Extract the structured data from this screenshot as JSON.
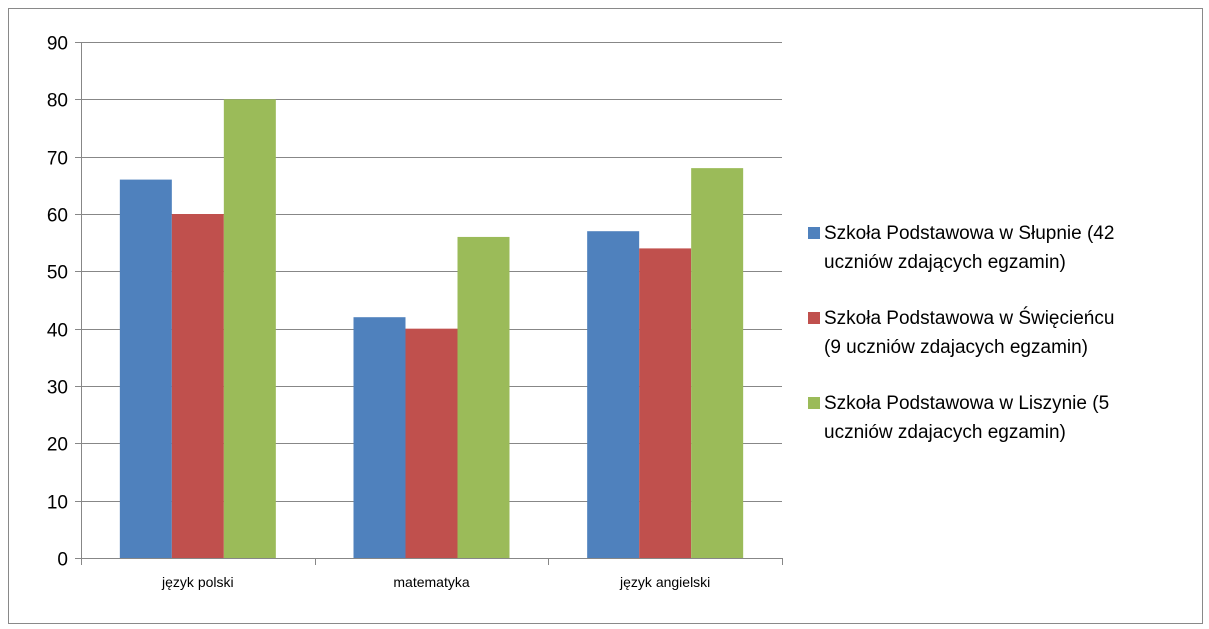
{
  "chart_data": {
    "type": "bar",
    "title": "",
    "xlabel": "",
    "ylabel": "",
    "categories": [
      "język polski",
      "matematyka",
      "język angielski"
    ],
    "series": [
      {
        "name": "Szkoła Podstawowa w Słupnie (42 uczniów zdających egzamin)",
        "legend_lines": [
          "Szkoła Podstawowa w Słupnie (42",
          "uczniów zdających egzamin)"
        ],
        "color": "#4F81BD",
        "values": [
          66,
          42,
          57
        ]
      },
      {
        "name": "Szkoła Podstawowa w Święcieńcu (9 uczniów zdajacych egzamin)",
        "legend_lines": [
          "Szkoła Podstawowa w Święcieńcu",
          "(9 uczniów zdajacych egzamin)"
        ],
        "color": "#C0504D",
        "values": [
          60,
          40,
          54
        ]
      },
      {
        "name": "Szkoła Podstawowa w Liszynie (5 uczniów zdajacych egzamin)",
        "legend_lines": [
          "Szkoła Podstawowa w Liszynie (5",
          "uczniów zdajacych egzamin)"
        ],
        "color": "#9BBB59",
        "values": [
          80,
          56,
          68
        ]
      }
    ],
    "ylim": [
      0,
      90
    ],
    "yticks": [
      0,
      10,
      20,
      30,
      40,
      50,
      60,
      70,
      80,
      90
    ],
    "grid": true,
    "legend_position": "right"
  }
}
